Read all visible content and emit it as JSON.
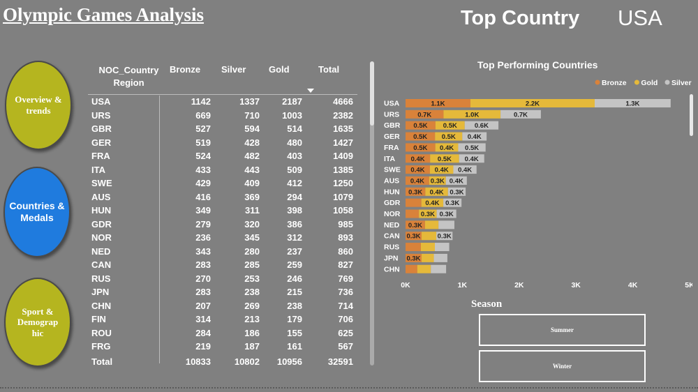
{
  "header": {
    "title": "Olympic Games Analysis",
    "top_country_label": "Top Country",
    "top_country_value": "USA"
  },
  "nav": {
    "overview": "Overview & trends",
    "countries": "Countries & Medals",
    "sport": "Sport & Demograp hic"
  },
  "table": {
    "headers": {
      "region": "NOC_Country Region",
      "bronze": "Bronze",
      "silver": "Silver",
      "gold": "Gold",
      "total": "Total"
    },
    "rows": [
      {
        "name": "USA",
        "bronze": "1142",
        "silver": "1337",
        "gold": "2187",
        "total": "4666"
      },
      {
        "name": "URS",
        "bronze": "669",
        "silver": "710",
        "gold": "1003",
        "total": "2382"
      },
      {
        "name": "GBR",
        "bronze": "527",
        "silver": "594",
        "gold": "514",
        "total": "1635"
      },
      {
        "name": "GER",
        "bronze": "519",
        "silver": "428",
        "gold": "480",
        "total": "1427"
      },
      {
        "name": "FRA",
        "bronze": "524",
        "silver": "482",
        "gold": "403",
        "total": "1409"
      },
      {
        "name": "ITA",
        "bronze": "433",
        "silver": "443",
        "gold": "509",
        "total": "1385"
      },
      {
        "name": "SWE",
        "bronze": "429",
        "silver": "409",
        "gold": "412",
        "total": "1250"
      },
      {
        "name": "AUS",
        "bronze": "416",
        "silver": "369",
        "gold": "294",
        "total": "1079"
      },
      {
        "name": "HUN",
        "bronze": "349",
        "silver": "311",
        "gold": "398",
        "total": "1058"
      },
      {
        "name": "GDR",
        "bronze": "279",
        "silver": "320",
        "gold": "386",
        "total": "985"
      },
      {
        "name": "NOR",
        "bronze": "236",
        "silver": "345",
        "gold": "312",
        "total": "893"
      },
      {
        "name": "NED",
        "bronze": "343",
        "silver": "280",
        "gold": "237",
        "total": "860"
      },
      {
        "name": "CAN",
        "bronze": "283",
        "silver": "285",
        "gold": "259",
        "total": "827"
      },
      {
        "name": "RUS",
        "bronze": "270",
        "silver": "253",
        "gold": "246",
        "total": "769"
      },
      {
        "name": "JPN",
        "bronze": "283",
        "silver": "238",
        "gold": "215",
        "total": "736"
      },
      {
        "name": "CHN",
        "bronze": "207",
        "silver": "269",
        "gold": "238",
        "total": "714"
      },
      {
        "name": "FIN",
        "bronze": "314",
        "silver": "213",
        "gold": "179",
        "total": "706"
      },
      {
        "name": "ROU",
        "bronze": "284",
        "silver": "186",
        "gold": "155",
        "total": "625"
      },
      {
        "name": "FRG",
        "bronze": "219",
        "silver": "187",
        "gold": "161",
        "total": "567"
      }
    ],
    "total": {
      "name": "Total",
      "bronze": "10833",
      "silver": "10802",
      "gold": "10956",
      "total": "32591"
    }
  },
  "season": {
    "title": "Season",
    "summer": "Summer",
    "winter": "Winter"
  },
  "colors": {
    "bronze": "#d9823a",
    "gold": "#e5b93a",
    "silver": "#c4c4c4",
    "nav_olive": "#b5b51f",
    "nav_blue": "#1f7bde",
    "background": "#808080"
  },
  "chart_data": {
    "type": "bar",
    "orientation": "horizontal",
    "stacked": true,
    "title": "Top Performing Countries",
    "categories": [
      "USA",
      "URS",
      "GBR",
      "GER",
      "FRA",
      "ITA",
      "SWE",
      "AUS",
      "HUN",
      "GDR",
      "NOR",
      "NED",
      "CAN",
      "RUS",
      "JPN",
      "CHN"
    ],
    "series": [
      {
        "name": "Bronze",
        "color": "#d9823a",
        "values": [
          1142,
          669,
          527,
          519,
          524,
          433,
          429,
          416,
          349,
          279,
          236,
          343,
          283,
          270,
          283,
          207
        ]
      },
      {
        "name": "Gold",
        "color": "#e5b93a",
        "values": [
          2187,
          1003,
          514,
          480,
          403,
          509,
          412,
          294,
          398,
          386,
          312,
          237,
          259,
          246,
          215,
          238
        ]
      },
      {
        "name": "Silver",
        "color": "#c4c4c4",
        "values": [
          1337,
          710,
          594,
          428,
          482,
          443,
          409,
          369,
          311,
          320,
          345,
          280,
          285,
          253,
          238,
          269
        ]
      }
    ],
    "data_labels": [
      [
        "1.1K",
        "2.2K",
        "1.3K"
      ],
      [
        "0.7K",
        "1.0K",
        "0.7K"
      ],
      [
        "0.5K",
        "0.5K",
        "0.6K"
      ],
      [
        "0.5K",
        "0.5K",
        "0.4K"
      ],
      [
        "0.5K",
        "0.4K",
        "0.5K"
      ],
      [
        "0.4K",
        "0.5K",
        "0.4K"
      ],
      [
        "0.4K",
        "0.4K",
        "0.4K"
      ],
      [
        "0.4K",
        "0.3K",
        "0.4K"
      ],
      [
        "0.3K",
        "0.4K",
        "0.3K"
      ],
      [
        "",
        "0.4K",
        "0.3K"
      ],
      [
        "",
        "0.3K",
        "0.3K"
      ],
      [
        "0.3K",
        "",
        ""
      ],
      [
        "0.3K",
        "",
        "0.3K"
      ],
      [
        "",
        "",
        ""
      ],
      [
        "0.3K",
        "",
        ""
      ],
      [
        "",
        "",
        ""
      ]
    ],
    "xlim": [
      0,
      5000
    ],
    "xticks": [
      0,
      1000,
      2000,
      3000,
      4000,
      5000
    ],
    "xtick_labels": [
      "0K",
      "1K",
      "2K",
      "3K",
      "4K",
      "5K"
    ],
    "legend_position": "top-right",
    "grid": false
  }
}
